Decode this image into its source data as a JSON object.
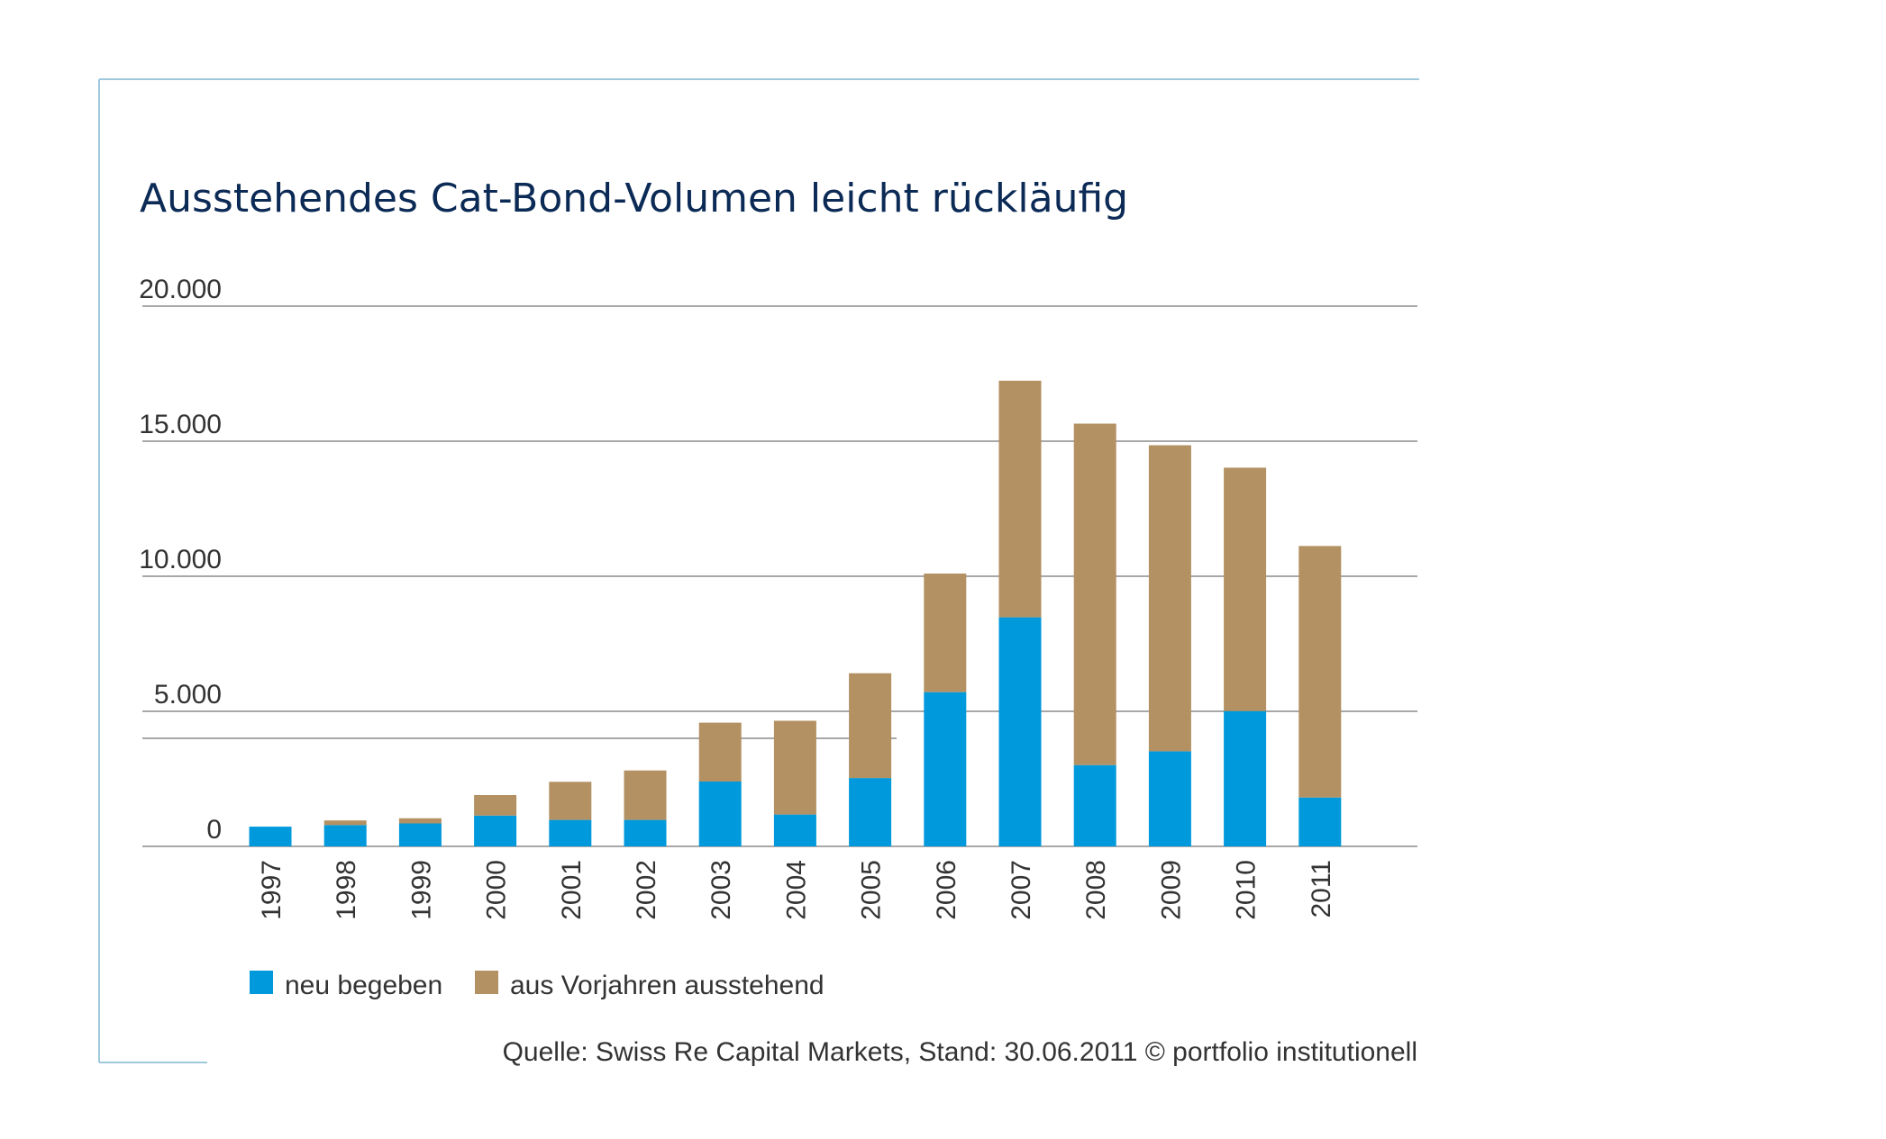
{
  "chart_data": {
    "type": "bar",
    "stacked": true,
    "title": "Ausstehendes Cat-Bond-Volumen leicht rückläufig",
    "xlabel": "",
    "ylabel": "",
    "ylim": [
      0,
      20000
    ],
    "yticks": [
      0,
      5000,
      10000,
      15000,
      20000
    ],
    "ytick_labels": [
      "0",
      "5.000",
      "10.000",
      "15.000",
      "20.000"
    ],
    "grid": true,
    "categories": [
      "1997",
      "1998",
      "1999",
      "2000",
      "2001",
      "2002",
      "2003",
      "2004",
      "2005",
      "2006",
      "2007",
      "2008",
      "2009",
      "2010",
      "2011"
    ],
    "series": [
      {
        "name": "neu begeben",
        "color": "#0099dc",
        "values": [
          730,
          790,
          850,
          1140,
          980,
          980,
          2400,
          1180,
          2530,
          5710,
          8480,
          3010,
          3520,
          5010,
          1810
        ]
      },
      {
        "name": "aus Vorjahren ausstehend",
        "color": "#b39162",
        "values": [
          0,
          170,
          190,
          760,
          1410,
          1830,
          2180,
          3470,
          3880,
          4390,
          8760,
          12640,
          11330,
          9010,
          9310
        ]
      }
    ],
    "legend_position": "bottom-left",
    "source": "Quelle: Swiss Re Capital Markets, Stand: 30.06.2011 © portfolio institutionell"
  },
  "colors": {
    "frame": "#9fc8dc",
    "grid": "#8c8c8c",
    "title": "#0b2a55",
    "text": "#333333"
  }
}
